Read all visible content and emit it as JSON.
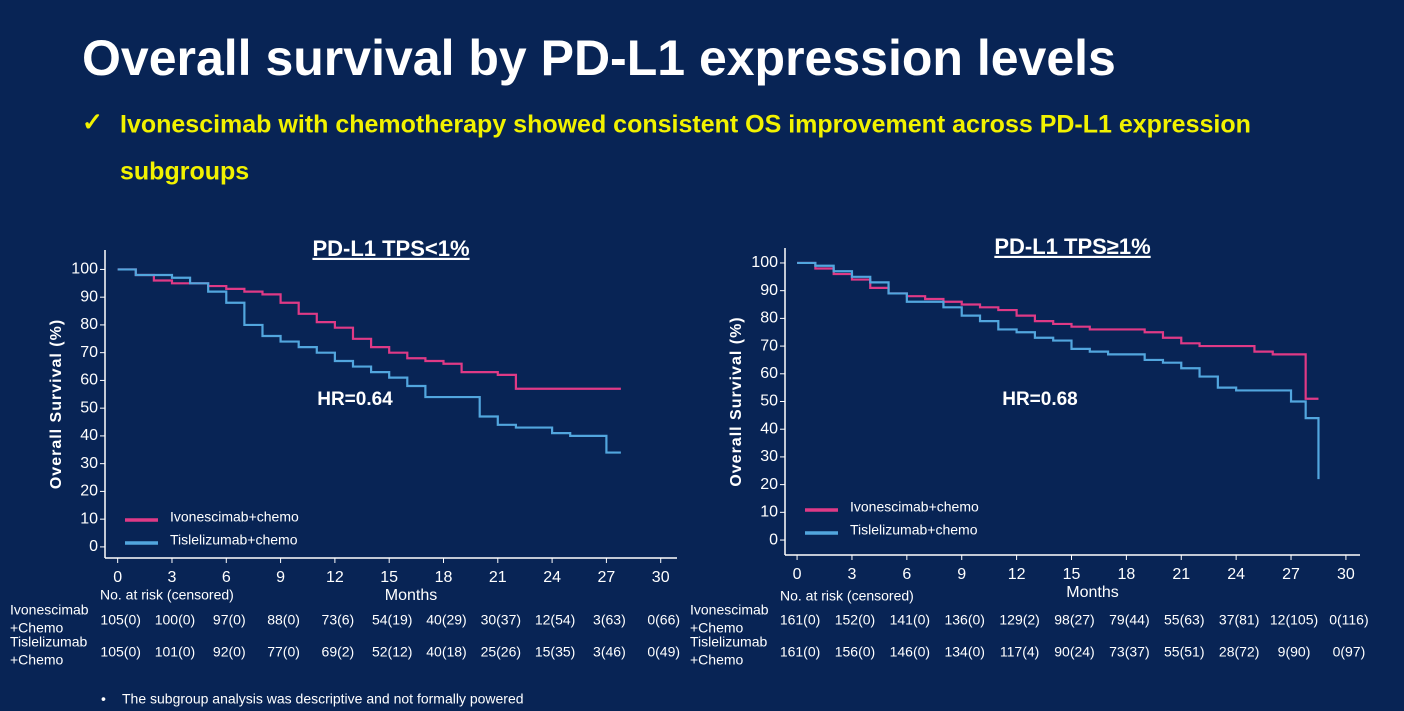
{
  "title": "Overall survival by PD-L1 expression levels",
  "bullet_mark": "✓",
  "bullet": [
    "Ivonescimab with chemotherapy showed consistent OS improvement across PD-L1 expression",
    "subgroups"
  ],
  "footnote_mark": "•",
  "footnote": "The subgroup analysis was descriptive and not formally powered",
  "chart_data": [
    {
      "type": "line",
      "step": true,
      "title": "PD-L1 TPS<1%",
      "x_label": "Months",
      "y_label": "Overall  Survival  (%)",
      "annotation": "HR=0.64",
      "xlim": [
        -0.7,
        30.9
      ],
      "ylim": [
        -4,
        107
      ],
      "xticks": [
        0,
        3,
        6,
        9,
        12,
        15,
        18,
        21,
        24,
        27,
        30
      ],
      "yticks": [
        0,
        10,
        20,
        30,
        40,
        50,
        60,
        70,
        80,
        90,
        100
      ],
      "x": [
        0,
        1,
        2,
        3,
        4,
        5,
        6,
        7,
        8,
        9,
        10,
        11,
        12,
        13,
        14,
        15,
        16,
        17,
        18,
        19,
        20,
        21,
        22,
        23,
        24,
        25,
        26,
        27,
        27.8
      ],
      "series": [
        {
          "name": "Ivonescimab+chemo",
          "color": "#df3a86",
          "values": [
            100,
            98,
            96,
            95,
            95,
            94,
            93,
            92,
            91,
            88,
            84,
            81,
            79,
            75,
            72,
            70,
            68,
            67,
            66,
            63,
            63,
            62,
            57,
            57,
            57,
            57,
            57,
            57,
            57
          ]
        },
        {
          "name": "Tislelizumab+chemo",
          "color": "#52a6de",
          "values": [
            100,
            98,
            98,
            97,
            95,
            92,
            88,
            80,
            76,
            74,
            72,
            70,
            67,
            65,
            63,
            61,
            58,
            54,
            54,
            54,
            47,
            44,
            43,
            43,
            41,
            40,
            40,
            34,
            34
          ]
        }
      ],
      "risk_table": {
        "title": "No. at risk (censored)",
        "rows": [
          {
            "label": [
              "Ivonescimab",
              "+Chemo"
            ],
            "values": [
              "105(0)",
              "100(0)",
              "97(0)",
              "88(0)",
              "73(6)",
              "54(19)",
              "40(29)",
              "30(37)",
              "12(54)",
              "3(63)",
              "0(66)"
            ]
          },
          {
            "label": [
              "Tislelizumab",
              "+Chemo"
            ],
            "values": [
              "105(0)",
              "101(0)",
              "92(0)",
              "77(0)",
              "69(2)",
              "52(12)",
              "40(18)",
              "25(26)",
              "15(35)",
              "3(46)",
              "0(49)"
            ]
          }
        ]
      }
    },
    {
      "type": "line",
      "step": true,
      "title": "PD-L1 TPS≥1%",
      "x_label": "Months",
      "y_label": "Overall  Survival  (%)",
      "annotation": "HR=0.68",
      "xlim": [
        -0.66,
        30.77
      ],
      "ylim": [
        -5.4,
        105.4
      ],
      "xticks": [
        0,
        3,
        6,
        9,
        12,
        15,
        18,
        21,
        24,
        27,
        30
      ],
      "yticks": [
        0,
        10,
        20,
        30,
        40,
        50,
        60,
        70,
        80,
        90,
        100
      ],
      "x": [
        0,
        1,
        2,
        3,
        4,
        5,
        6,
        7,
        8,
        9,
        10,
        11,
        12,
        13,
        14,
        15,
        16,
        17,
        18,
        19,
        20,
        21,
        22,
        23,
        24,
        25,
        26,
        27,
        27.8,
        28.5
      ],
      "series": [
        {
          "name": "Ivonescimab+chemo",
          "color": "#df3a86",
          "values": [
            100,
            98,
            96,
            94,
            91,
            89,
            88,
            87,
            86,
            85,
            84,
            83,
            81,
            79,
            78,
            77,
            76,
            76,
            76,
            75,
            73,
            71,
            70,
            70,
            70,
            68,
            67,
            67,
            51,
            51
          ]
        },
        {
          "name": "Tislelizumab+chemo",
          "color": "#52a6de",
          "values": [
            100,
            99,
            97,
            95,
            93,
            89,
            86,
            86,
            84,
            81,
            79,
            76,
            75,
            73,
            72,
            69,
            68,
            67,
            67,
            65,
            64,
            62,
            59,
            55,
            54,
            54,
            54,
            50,
            44,
            22
          ]
        }
      ],
      "risk_table": {
        "title": "No. at risk (censored)",
        "rows": [
          {
            "label": [
              "Ivonescimab",
              "+Chemo"
            ],
            "values": [
              "161(0)",
              "152(0)",
              "141(0)",
              "136(0)",
              "129(2)",
              "98(27)",
              "79(44)",
              "55(63)",
              "37(81)",
              "12(105)",
              "0(116)"
            ]
          },
          {
            "label": [
              "Tislelizumab",
              "+Chemo"
            ],
            "values": [
              "161(0)",
              "156(0)",
              "146(0)",
              "134(0)",
              "117(4)",
              "90(24)",
              "73(37)",
              "55(51)",
              "28(72)",
              "9(90)",
              "0(97)"
            ]
          }
        ]
      }
    }
  ]
}
